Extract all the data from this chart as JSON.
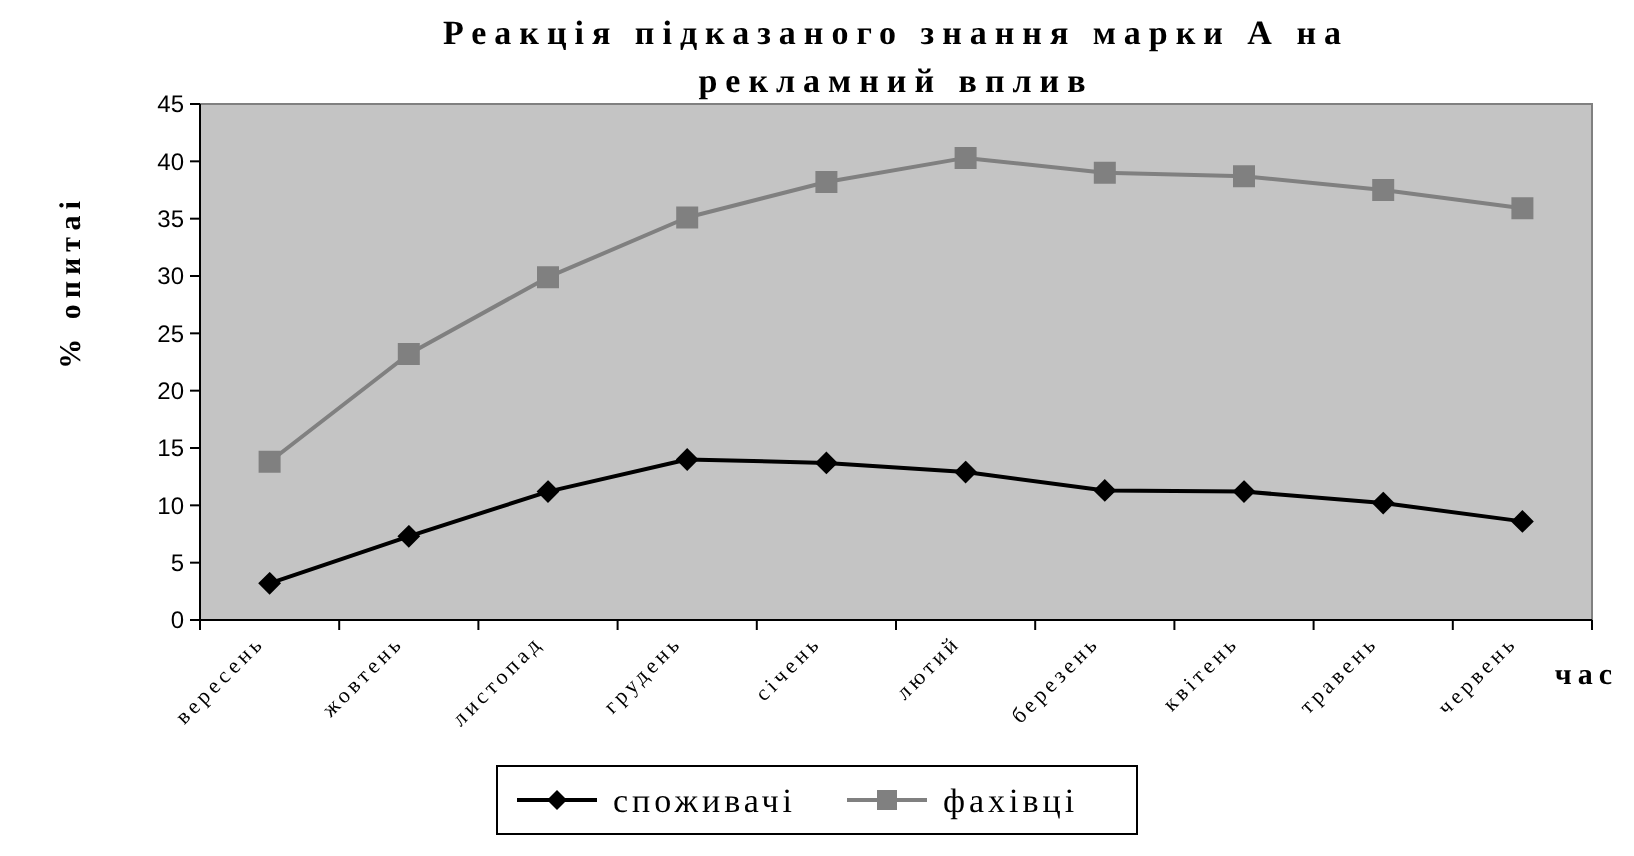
{
  "chart_data": {
    "type": "line",
    "title": "Реакція підказаного знання марки А на рекламний вплив",
    "ylabel": "% опитаі",
    "xlabel": "час",
    "categories": [
      "вересень",
      "жовтень",
      "листопад",
      "грудень",
      "січень",
      "лютий",
      "березень",
      "квітень",
      "травень",
      "червень"
    ],
    "series": [
      {
        "name": "споживачі",
        "color": "#000000",
        "marker": "diamond",
        "values": [
          3.2,
          7.3,
          11.2,
          14.0,
          13.7,
          12.9,
          11.3,
          11.2,
          10.2,
          8.6
        ]
      },
      {
        "name": "фахівці",
        "color": "#808080",
        "marker": "square",
        "values": [
          13.8,
          23.2,
          29.9,
          35.1,
          38.2,
          40.3,
          39.0,
          38.7,
          37.5,
          35.9
        ]
      }
    ],
    "ylim": [
      0,
      45
    ],
    "yticks": [
      0,
      5,
      10,
      15,
      20,
      25,
      30,
      35,
      40,
      45
    ],
    "grid": false,
    "legend": "bottom"
  }
}
